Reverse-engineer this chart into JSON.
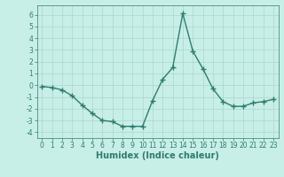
{
  "x": [
    0,
    1,
    2,
    3,
    4,
    5,
    6,
    7,
    8,
    9,
    10,
    11,
    12,
    13,
    14,
    15,
    16,
    17,
    18,
    19,
    20,
    21,
    22,
    23
  ],
  "y": [
    -0.1,
    -0.2,
    -0.4,
    -0.9,
    -1.7,
    -2.4,
    -3.0,
    -3.1,
    -3.5,
    -3.5,
    -3.5,
    -1.3,
    0.5,
    1.5,
    6.1,
    2.9,
    1.4,
    -0.3,
    -1.4,
    -1.8,
    -1.8,
    -1.5,
    -1.4,
    -1.2
  ],
  "color": "#2e7d6e",
  "bg_color": "#c8eee8",
  "grid_color": "#a8d8cc",
  "xlabel": "Humidex (Indice chaleur)",
  "ylim": [
    -4.5,
    6.8
  ],
  "xlim": [
    -0.5,
    23.5
  ],
  "yticks": [
    -4,
    -3,
    -2,
    -1,
    0,
    1,
    2,
    3,
    4,
    5,
    6
  ],
  "xticks": [
    0,
    1,
    2,
    3,
    4,
    5,
    6,
    7,
    8,
    9,
    10,
    11,
    12,
    13,
    14,
    15,
    16,
    17,
    18,
    19,
    20,
    21,
    22,
    23
  ],
  "marker": "+",
  "markersize": 4,
  "linewidth": 1.0,
  "tick_fontsize": 5.5,
  "xlabel_fontsize": 7.0
}
